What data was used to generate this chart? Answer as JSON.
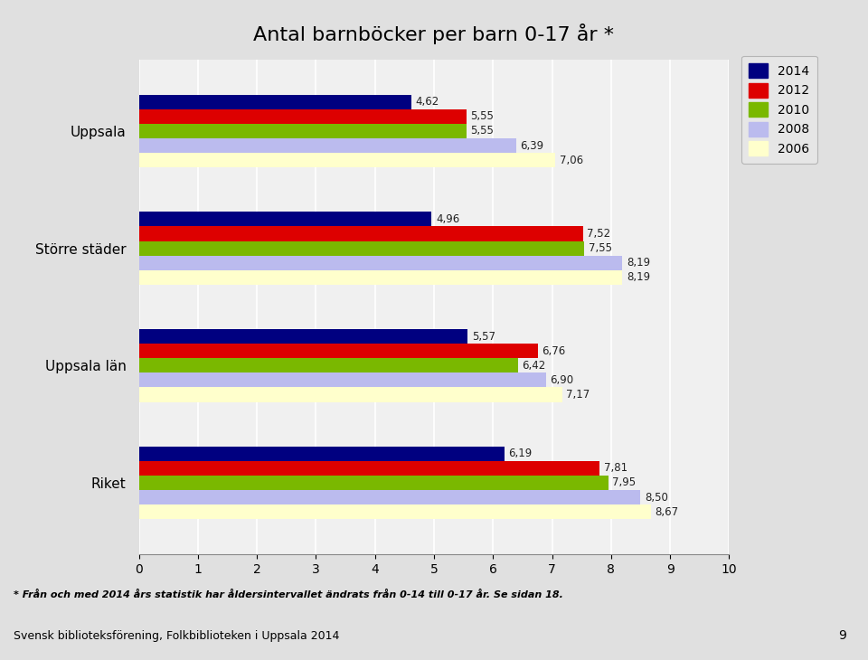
{
  "title": "Antal barnböcker per barn 0-17 år *",
  "categories": [
    "Uppsala",
    "Större städer",
    "Uppsala län",
    "Riket"
  ],
  "years": [
    "2014",
    "2012",
    "2010",
    "2008",
    "2006"
  ],
  "colors_map": {
    "2014": "#000080",
    "2012": "#DD0000",
    "2010": "#7AB800",
    "2008": "#BBBBEE",
    "2006": "#FFFFCC"
  },
  "values": {
    "Uppsala": [
      4.62,
      5.55,
      5.55,
      6.39,
      7.06
    ],
    "Större städer": [
      4.96,
      7.52,
      7.55,
      8.19,
      8.19
    ],
    "Uppsala län": [
      5.57,
      6.76,
      6.42,
      6.9,
      7.17
    ],
    "Riket": [
      6.19,
      7.81,
      7.95,
      8.5,
      8.67
    ]
  },
  "xlim": [
    0,
    10
  ],
  "xticks": [
    0,
    1,
    2,
    3,
    4,
    5,
    6,
    7,
    8,
    9,
    10
  ],
  "footnote": "* Från och med 2014 års statistik har åldersintervallet ändrats från 0-14 till 0-17 år. Se sidan 18.",
  "footer": "Svensk biblioteksförening, Folkbiblioteken i Uppsala 2014",
  "page_number": "9",
  "background_color": "#E0E0E0",
  "plot_bg_color": "#F0F0F0"
}
